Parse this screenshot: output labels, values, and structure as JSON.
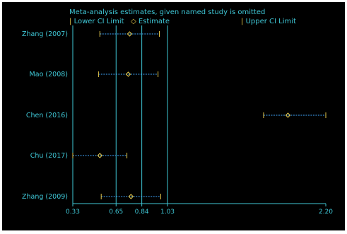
{
  "chart_data": {
    "type": "forest",
    "title": "Meta-analysis estimates, given named study is omitted",
    "legend": {
      "placement": "top-left",
      "entries": [
        {
          "marker": "|",
          "label": "Lower CI Limit"
        },
        {
          "marker": "◇",
          "label": "Estimate"
        },
        {
          "marker": "|",
          "label": "Upper CI Limit"
        }
      ]
    },
    "studies": [
      {
        "name": "Zhang (2007)",
        "lower": 0.53,
        "estimate": 0.75,
        "upper": 0.97
      },
      {
        "name": "Mao (2008)",
        "lower": 0.52,
        "estimate": 0.74,
        "upper": 0.96
      },
      {
        "name": "Chen (2016)",
        "lower": 1.74,
        "estimate": 1.92,
        "upper": 2.2
      },
      {
        "name": "Chu (2017)",
        "lower": 0.33,
        "estimate": 0.53,
        "upper": 0.73
      },
      {
        "name": "Zhang (2009)",
        "lower": 0.54,
        "estimate": 0.76,
        "upper": 0.98
      }
    ],
    "x_ticks": [
      0.33,
      0.65,
      0.84,
      1.03,
      2.2
    ],
    "x_tick_labels": [
      "0.33",
      "0.65",
      "0.84",
      "1.03",
      "2.20"
    ],
    "xlim": [
      0.33,
      2.2
    ],
    "reference_lines": [
      0.33,
      0.65,
      0.84,
      1.03
    ],
    "colors": {
      "background": "#000000",
      "axis": "#3fc7d6",
      "text": "#3fc7d6",
      "ci_line": "#3fa9ff",
      "ci_cap": "#e6c84a",
      "estimate_marker": "#e6c84a"
    }
  }
}
